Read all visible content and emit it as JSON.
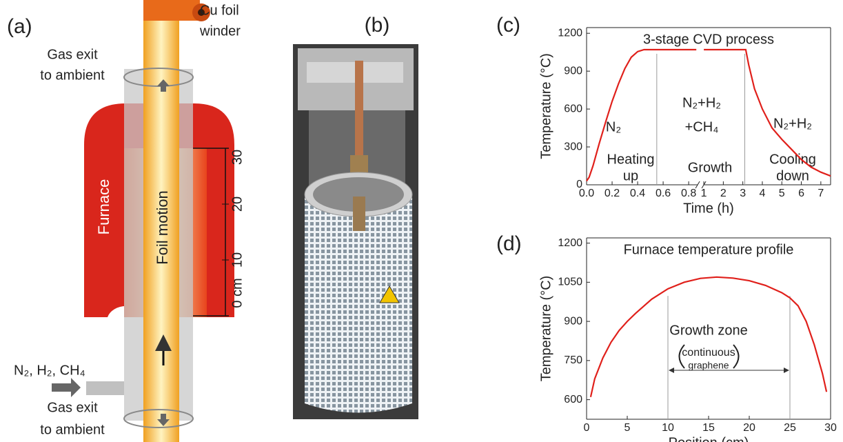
{
  "panel_labels": [
    "(a)",
    "(b)",
    "(c)",
    "(d)"
  ],
  "diagram": {
    "foil_winder": [
      "Cu foil",
      "winder"
    ],
    "gas_exit_top": [
      "Gas exit",
      "to ambient"
    ],
    "furnace": "Furnace",
    "foil_motion": "Foil motion",
    "gas_inlet": "N₂, H₂, CH₄",
    "gas_exit_bottom": [
      "Gas exit",
      "to ambient"
    ],
    "scale_labels": [
      "0 cm",
      "10",
      "20",
      "30"
    ]
  },
  "chart_data": [
    {
      "type": "line",
      "title": "3-stage CVD process",
      "xlabel": "Time (h)",
      "ylabel": "Temperature (°C)",
      "xlim": [
        0,
        7.5
      ],
      "xbreak": [
        0.87,
        1
      ],
      "ylim": [
        0,
        1245
      ],
      "xticks": [
        {
          "value": 0,
          "label": "0.0"
        },
        0.2,
        0.4,
        0.6,
        0.8,
        1,
        2,
        3,
        4,
        5,
        6,
        7
      ],
      "yticks": [
        0,
        300,
        600,
        900,
        1200
      ],
      "color": "#e0201b",
      "x": [
        0,
        0.02,
        0.05,
        0.1,
        0.15,
        0.2,
        0.25,
        0.3,
        0.35,
        0.4,
        0.45,
        0.86,
        0.93,
        1,
        3.15,
        3.3,
        3.6,
        4,
        4.5,
        5,
        5.5,
        6,
        6.5,
        7,
        7.5
      ],
      "values": [
        30,
        60,
        150,
        330,
        500,
        660,
        800,
        920,
        1010,
        1055,
        1070,
        1070,
        null,
        1070,
        1070,
        950,
        760,
        600,
        450,
        360,
        280,
        200,
        140,
        100,
        70
      ],
      "boundaries": [
        0.55,
        3.1
      ],
      "annotations": [
        "N₂",
        "N₂+H₂",
        "+CH₄",
        "N₂+H₂",
        "Heating",
        "up",
        "Growth",
        "Cooling",
        "down"
      ]
    },
    {
      "type": "line",
      "title": "Furnace temperature profile",
      "xlabel": "Position (cm)",
      "ylabel": "Temperature (°C)",
      "xlim": [
        0,
        30
      ],
      "ylim": [
        525,
        1220
      ],
      "xticks": [
        0,
        5,
        10,
        15,
        20,
        25,
        30
      ],
      "yticks": [
        600,
        750,
        900,
        1050,
        1200
      ],
      "color": "#e0201b",
      "x": [
        0.5,
        1,
        2,
        3,
        4,
        5,
        6,
        8,
        10,
        12,
        14,
        16,
        18,
        20,
        22,
        24,
        25,
        26,
        27,
        28,
        29,
        29.5
      ],
      "values": [
        610,
        680,
        760,
        820,
        865,
        900,
        930,
        985,
        1025,
        1050,
        1065,
        1070,
        1066,
        1056,
        1038,
        1010,
        990,
        960,
        900,
        810,
        700,
        630
      ],
      "boundaries": [
        10,
        25
      ],
      "annotations": [
        "Growth zone",
        "continuous",
        "graphene"
      ]
    }
  ]
}
